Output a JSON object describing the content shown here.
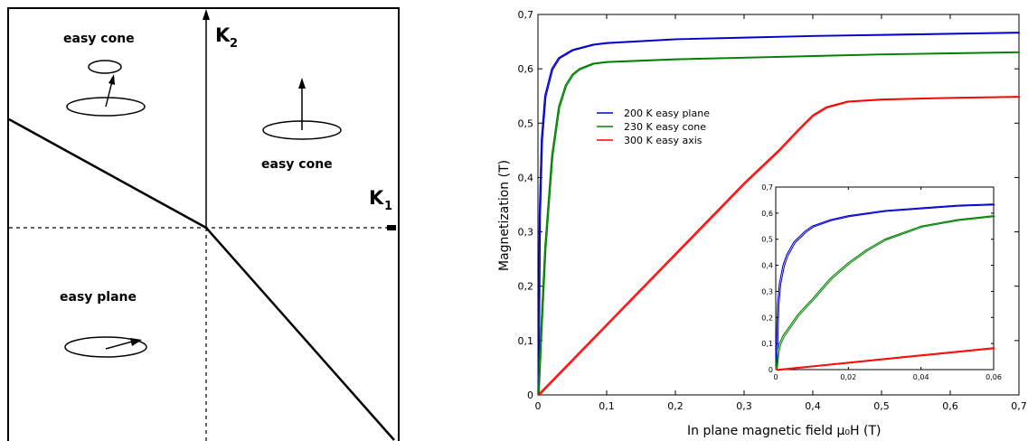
{
  "diagram": {
    "k2_label": "K",
    "k2_sub": "2",
    "k1_label": "K",
    "k1_sub": "1",
    "region_upper_left": "easy cone",
    "region_upper_right": "easy cone",
    "region_lower_left": "easy plane"
  },
  "chart_data": [
    {
      "type": "line",
      "title": "",
      "xlabel": "In plane magnetic field μ₀H (T)",
      "ylabel": "Magnetization (T)",
      "xlim": [
        0,
        0.7
      ],
      "ylim": [
        0,
        0.7
      ],
      "xticks": [
        "0",
        "0,1",
        "0,2",
        "0,3",
        "0,4",
        "0,5",
        "0,6",
        "0,7"
      ],
      "yticks": [
        "0",
        "0,1",
        "0,2",
        "0,3",
        "0,4",
        "0,5",
        "0,6",
        "0,7"
      ],
      "legend_position": "upper-left",
      "series": [
        {
          "name": "200 K easy plane",
          "color": "#0000cc",
          "x": [
            0,
            0.002,
            0.005,
            0.01,
            0.02,
            0.03,
            0.05,
            0.08,
            0.1,
            0.2,
            0.3,
            0.4,
            0.5,
            0.6,
            0.7
          ],
          "y": [
            0,
            0.33,
            0.47,
            0.55,
            0.6,
            0.62,
            0.635,
            0.645,
            0.648,
            0.655,
            0.658,
            0.661,
            0.663,
            0.665,
            0.667
          ]
        },
        {
          "name": "230 K easy cone",
          "color": "#008000",
          "x": [
            0,
            0.005,
            0.01,
            0.02,
            0.03,
            0.04,
            0.05,
            0.06,
            0.08,
            0.1,
            0.2,
            0.3,
            0.4,
            0.5,
            0.6,
            0.7
          ],
          "y": [
            0,
            0.14,
            0.27,
            0.44,
            0.53,
            0.57,
            0.59,
            0.6,
            0.61,
            0.613,
            0.618,
            0.621,
            0.624,
            0.627,
            0.629,
            0.631
          ]
        },
        {
          "name": "300 K easy axis",
          "color": "#ff0000",
          "x": [
            0,
            0.05,
            0.1,
            0.15,
            0.2,
            0.25,
            0.3,
            0.35,
            0.38,
            0.4,
            0.42,
            0.45,
            0.5,
            0.6,
            0.7
          ],
          "y": [
            0,
            0.065,
            0.13,
            0.195,
            0.26,
            0.325,
            0.39,
            0.45,
            0.49,
            0.515,
            0.53,
            0.54,
            0.544,
            0.547,
            0.549
          ]
        }
      ]
    },
    {
      "type": "line",
      "title": "",
      "xlim": [
        0,
        0.06
      ],
      "ylim": [
        0,
        0.7
      ],
      "xticks": [
        "0",
        "0,02",
        "0,04",
        "0,06"
      ],
      "yticks": [
        "0",
        "0,1",
        "0,2",
        "0,3",
        "0,4",
        "0,5",
        "0,6",
        "0,7"
      ],
      "series": [
        {
          "name": "200 K easy plane",
          "color": "#0000cc",
          "x": [
            0,
            0.0005,
            0.001,
            0.002,
            0.003,
            0.005,
            0.008,
            0.01,
            0.015,
            0.02,
            0.03,
            0.04,
            0.05,
            0.06
          ],
          "y": [
            0,
            0.25,
            0.33,
            0.4,
            0.44,
            0.49,
            0.53,
            0.55,
            0.575,
            0.59,
            0.61,
            0.62,
            0.63,
            0.635
          ]
        },
        {
          "name": "230 K easy cone",
          "color": "#008000",
          "x": [
            0,
            0.0005,
            0.001,
            0.002,
            0.004,
            0.006,
            0.008,
            0.01,
            0.015,
            0.02,
            0.025,
            0.03,
            0.04,
            0.05,
            0.06
          ],
          "y": [
            0,
            0.07,
            0.1,
            0.13,
            0.17,
            0.21,
            0.24,
            0.27,
            0.35,
            0.41,
            0.46,
            0.5,
            0.55,
            0.575,
            0.59
          ]
        },
        {
          "name": "300 K easy axis",
          "color": "#ff0000",
          "x": [
            0,
            0.02,
            0.04,
            0.06
          ],
          "y": [
            0,
            0.028,
            0.056,
            0.084
          ]
        }
      ]
    }
  ]
}
